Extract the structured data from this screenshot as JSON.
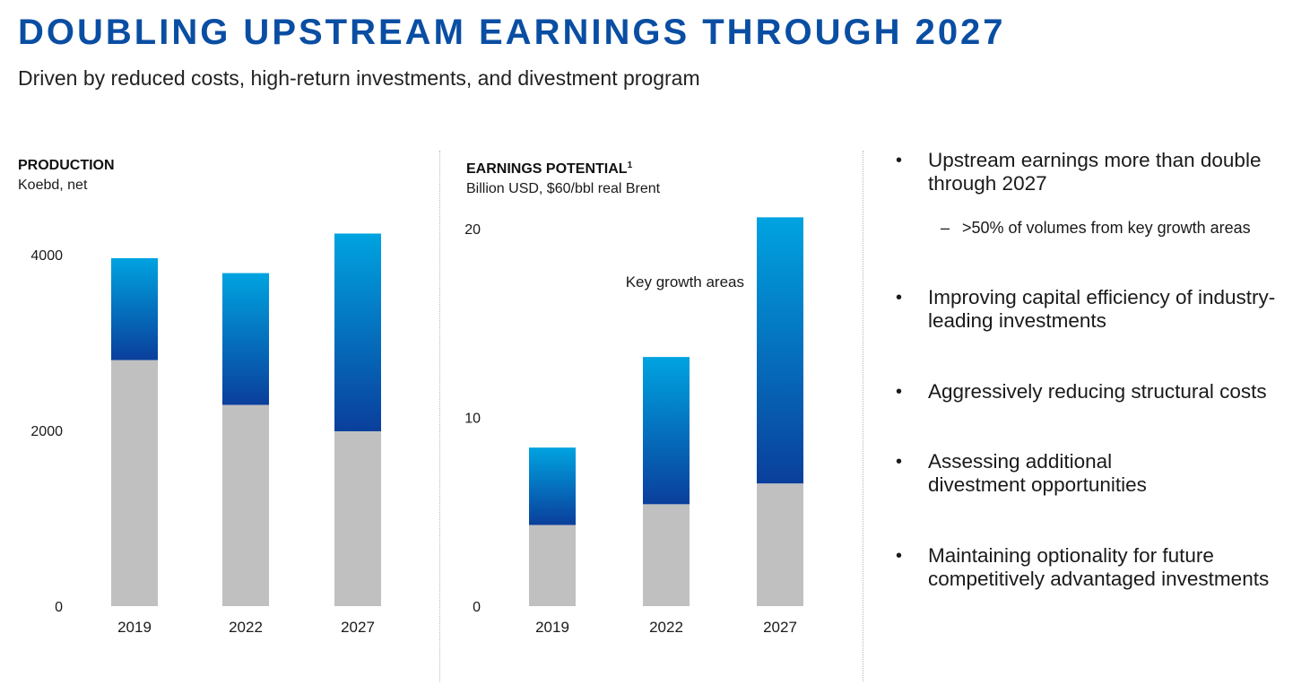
{
  "header": {
    "title": "DOUBLING UPSTREAM EARNINGS THROUGH 2027",
    "subtitle": "Driven by reduced costs, high-return investments, and divestment program"
  },
  "colors": {
    "title": "#0a4ea3",
    "base_bar": "#c0c0c0",
    "growth_top": "#00a3e0",
    "growth_bottom": "#0a3f9c"
  },
  "chart_data": [
    {
      "type": "bar",
      "stacked": true,
      "title": "PRODUCTION",
      "unit_label": "Koebd, net",
      "categories": [
        "2019",
        "2022",
        "2027"
      ],
      "series": [
        {
          "values": [
            2800,
            2290,
            1990
          ]
        },
        {
          "values": [
            1160,
            1500,
            2250
          ]
        }
      ],
      "y_ticks": [
        "0",
        "2000",
        "4000"
      ],
      "ylim": [
        0,
        4000
      ],
      "grid": false,
      "annotations": []
    },
    {
      "type": "bar",
      "stacked": true,
      "title": "EARNINGS POTENTIAL",
      "title_sup": "1",
      "unit_label": "Billion USD, $60/bbl real Brent",
      "categories": [
        "2019",
        "2022",
        "2027"
      ],
      "series": [
        {
          "values": [
            4.3,
            5.4,
            6.5
          ]
        },
        {
          "values": [
            4.1,
            7.8,
            14.1
          ]
        }
      ],
      "y_ticks": [
        "0",
        "10",
        "20"
      ],
      "ylim": [
        0,
        20
      ],
      "grid": false,
      "annotations": [
        "Key growth areas"
      ]
    }
  ],
  "bullets": [
    {
      "text": "Upstream earnings more than double through 2027",
      "sub": ">50% of volumes from key growth areas"
    },
    {
      "text": "Improving capital efficiency of industry-leading investments"
    },
    {
      "text": "Aggressively reducing structural costs"
    },
    {
      "text": "Assessing additional divestment opportunities"
    },
    {
      "text": "Maintaining optionality for future competitively advantaged investments"
    }
  ]
}
